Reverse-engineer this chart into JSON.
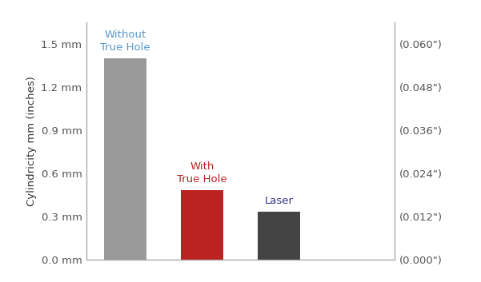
{
  "values": [
    1.4,
    0.48,
    0.33
  ],
  "bar_colors": [
    "#999999",
    "#bb2222",
    "#444444"
  ],
  "bar_labels": [
    "Without\nTrue Hole",
    "With\nTrue Hole",
    "Laser"
  ],
  "label_colors": [
    "#5599cc",
    "#bb2222",
    "#333388"
  ],
  "ylabel_left": "Cylindricity mm (inches)",
  "yticks": [
    0.0,
    0.3,
    0.6,
    0.9,
    1.2,
    1.5
  ],
  "ytick_labels_left": [
    "0.0 mm",
    "0.3 mm",
    "0.6 mm",
    "0.9 mm",
    "1.2 mm",
    "1.5 mm"
  ],
  "ytick_labels_right": [
    "(0.000\")",
    "(0.012\")",
    "(0.024\")",
    "(0.036\")",
    "(0.048\")",
    "(0.060\")"
  ],
  "ylim": [
    0,
    1.65
  ],
  "background_color": "#ffffff",
  "bar_width": 0.55,
  "label_fontsize": 9.5,
  "tick_fontsize": 9.5,
  "ylabel_fontsize": 9.5,
  "tick_color": "#555555",
  "spine_color": "#aaaaaa"
}
